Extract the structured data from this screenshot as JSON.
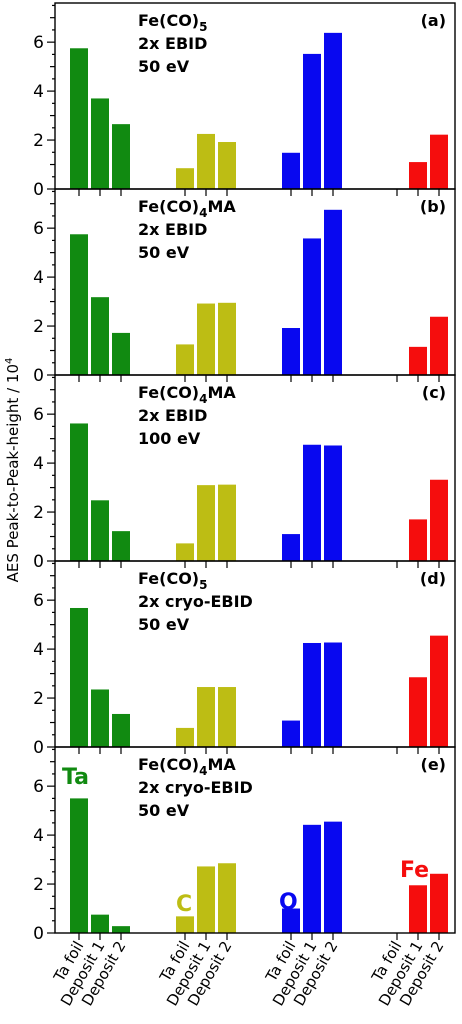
{
  "chart_data": {
    "type": "bar",
    "ylabel": "AES Peak-to-Peak-height / 10",
    "ylabel_sup": "4",
    "ylim": [
      0,
      7.6
    ],
    "yticks": [
      0,
      2,
      4,
      6
    ],
    "categories": [
      "Ta foil",
      "Deposit 1",
      "Deposit 2"
    ],
    "groups": [
      {
        "element": "Ta",
        "color": "#118a11"
      },
      {
        "element": "C",
        "color": "#bdbd14"
      },
      {
        "element": "O",
        "color": "#0808f0"
      },
      {
        "element": "Fe",
        "color": "#f50d0d"
      }
    ],
    "panels": [
      {
        "tag": "(a)",
        "title_lines": [
          {
            "main": "Fe(CO)",
            "sub": "5"
          },
          {
            "main": "2x EBID",
            "sub": ""
          },
          {
            "main": "50 eV",
            "sub": ""
          }
        ],
        "values": [
          [
            5.75,
            3.7,
            2.65
          ],
          [
            0.85,
            2.25,
            1.92
          ],
          [
            1.48,
            5.52,
            6.38
          ],
          [
            null,
            1.1,
            2.22
          ]
        ]
      },
      {
        "tag": "(b)",
        "title_lines": [
          {
            "main": "Fe(CO)",
            "sub": "4",
            "after": "MA"
          },
          {
            "main": "2x EBID",
            "sub": ""
          },
          {
            "main": "50 eV",
            "sub": ""
          }
        ],
        "values": [
          [
            5.75,
            3.18,
            1.72
          ],
          [
            1.25,
            2.92,
            2.95
          ],
          [
            1.92,
            5.58,
            6.75
          ],
          [
            null,
            1.15,
            2.38
          ]
        ]
      },
      {
        "tag": "(c)",
        "title_lines": [
          {
            "main": "Fe(CO)",
            "sub": "4",
            "after": "MA"
          },
          {
            "main": "2x EBID",
            "sub": ""
          },
          {
            "main": "100 eV",
            "sub": ""
          }
        ],
        "values": [
          [
            5.62,
            2.48,
            1.22
          ],
          [
            0.72,
            3.1,
            3.12
          ],
          [
            1.1,
            4.75,
            4.72
          ],
          [
            null,
            1.7,
            3.32
          ]
        ]
      },
      {
        "tag": "(d)",
        "title_lines": [
          {
            "main": "Fe(CO)",
            "sub": "5"
          },
          {
            "main": "2x cryo-EBID",
            "sub": ""
          },
          {
            "main": "50 eV",
            "sub": ""
          }
        ],
        "values": [
          [
            5.68,
            2.35,
            1.35
          ],
          [
            0.78,
            2.45,
            2.45
          ],
          [
            1.08,
            4.25,
            4.27
          ],
          [
            null,
            2.85,
            4.55
          ]
        ]
      },
      {
        "tag": "(e)",
        "title_lines": [
          {
            "main": "Fe(CO)",
            "sub": "4",
            "after": "MA"
          },
          {
            "main": "2x cryo-EBID",
            "sub": ""
          },
          {
            "main": "50 eV",
            "sub": ""
          }
        ],
        "values": [
          [
            5.5,
            0.75,
            0.28
          ],
          [
            0.68,
            2.72,
            2.85
          ],
          [
            1.0,
            4.42,
            4.55
          ],
          [
            null,
            1.95,
            2.42
          ]
        ],
        "element_labels": true
      }
    ]
  }
}
